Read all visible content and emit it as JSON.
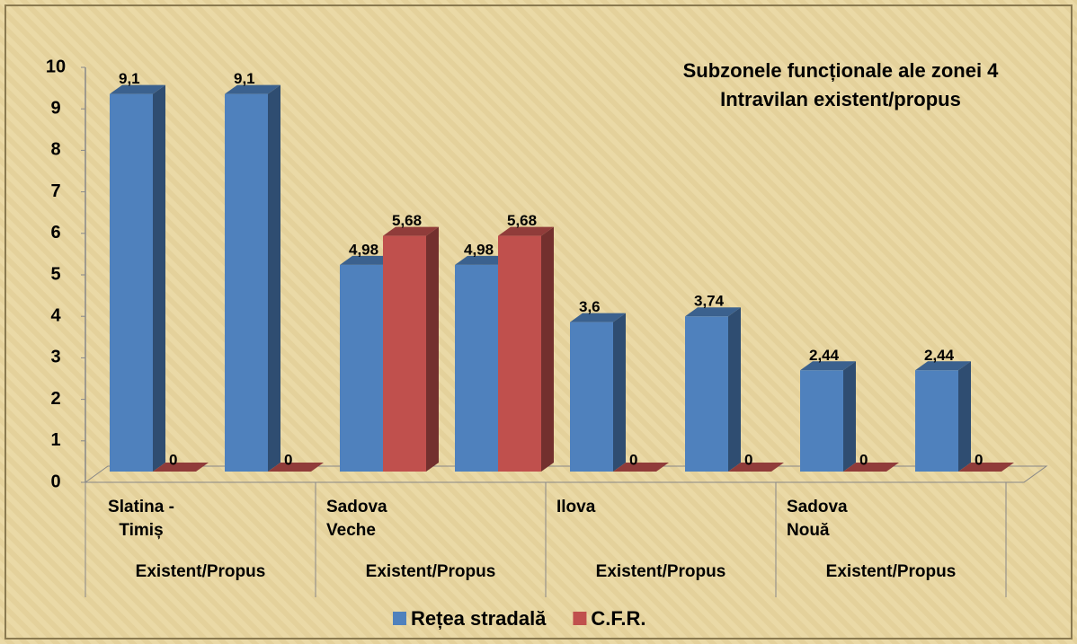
{
  "chart_data": {
    "type": "bar3d",
    "title": "Subzonele funcționale ale zonei 4",
    "subtitle": "Intravilan existent/propus",
    "categories": [
      "Slatina - Timiș",
      null,
      "Sadova Veche",
      null,
      "Ilova",
      null,
      "Sadova Nouă",
      null
    ],
    "group_labels": [
      "Existent/Propus",
      "Existent/Propus",
      "Existent/Propus",
      "Existent/Propus"
    ],
    "series": [
      {
        "name": "Rețea stradală",
        "color": "#4f81bd",
        "values": [
          9.1,
          9.1,
          4.98,
          4.98,
          3.6,
          3.74,
          2.44,
          2.44
        ],
        "value_labels": [
          "9,1",
          "9,1",
          "4,98",
          "4,98",
          "3,6",
          "3,74",
          "2,44",
          "2,44"
        ]
      },
      {
        "name": "C.F.R.",
        "color": "#c0504d",
        "values": [
          0,
          0,
          5.68,
          5.68,
          0,
          0,
          0,
          0
        ],
        "value_labels": [
          "0",
          "0",
          "5,68",
          "5,68",
          "0",
          "0",
          "0",
          "0"
        ]
      }
    ],
    "ylim": [
      0,
      10
    ],
    "yticks": [
      0,
      1,
      2,
      3,
      4,
      5,
      6,
      7,
      8,
      9,
      10
    ],
    "legend": "bottom"
  }
}
